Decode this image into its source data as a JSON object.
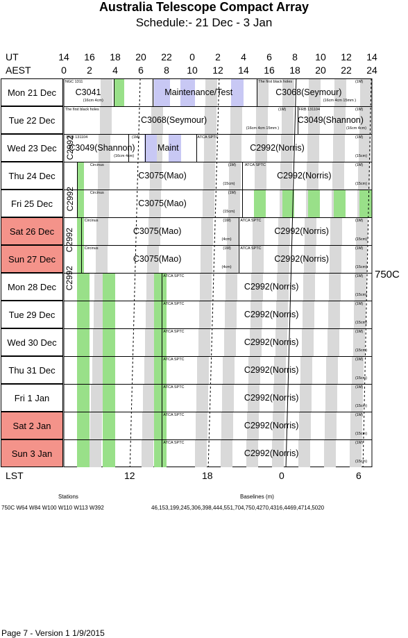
{
  "title": "Australia Telescope Compact Array",
  "subtitle": "Schedule:- 21 Dec - 3  Jan",
  "ut_label": "UT",
  "aest_label": "AEST",
  "ut_ticks": [
    "14",
    "16",
    "18",
    "20",
    "22",
    "0",
    "2",
    "4",
    "6",
    "8",
    "10",
    "12",
    "14"
  ],
  "aest_ticks": [
    "0",
    "2",
    "4",
    "6",
    "8",
    "10",
    "12",
    "14",
    "16",
    "18",
    "20",
    "22",
    "24"
  ],
  "days": [
    {
      "label": "Mon  21 Dec",
      "weekend": false
    },
    {
      "label": "Tue   22 Dec",
      "weekend": false
    },
    {
      "label": "Wed  23 Dec",
      "weekend": false
    },
    {
      "label": "Thu   24 Dec",
      "weekend": false
    },
    {
      "label": "Fri    25 Dec",
      "weekend": false
    },
    {
      "label": "Sat   26 Dec",
      "weekend": true
    },
    {
      "label": "Sun  27 Dec",
      "weekend": true
    },
    {
      "label": "Mon  28 Dec",
      "weekend": false
    },
    {
      "label": "Tue   29 Dec",
      "weekend": false
    },
    {
      "label": "Wed  30 Dec",
      "weekend": false
    },
    {
      "label": "Thu   31 Dec",
      "weekend": false
    },
    {
      "label": "Fri      1  Jan",
      "weekend": false
    },
    {
      "label": "Sat     2  Jan",
      "weekend": true
    },
    {
      "label": "Sun    3  Jan",
      "weekend": true
    }
  ],
  "projects": {
    "c3041": "C3041",
    "ngc1311": "NGC 1311",
    "cfg_16cm4cm": "(16cm 4cm)",
    "maint_test": "Maintenance/Test",
    "fbh": "The first black holes",
    "c3068": "C3068(Seymour)",
    "cfg_16cm4cm15mm": "(16cm 4cm 15mm )",
    "frb": "FRB 131104",
    "c3049": "C3049(Shannon)",
    "cfg_1m": "(1M)",
    "maint": "Maint",
    "atca_sptc": "ATCA SPTC",
    "c2992": "C2992(Norris)",
    "cfg_15cm": "(15cm)",
    "c2992v": "C2992",
    "circinus": "Circinus",
    "c3075": "C3075(Mao)",
    "cfg_4cm": "(4cm)"
  },
  "config_label": "750C",
  "lst_label": "LST",
  "lst_ticks": [
    "12",
    "18",
    "0",
    "6"
  ],
  "stations_label": "Stations",
  "baselines_label": "Baselines (m)",
  "stations_value": "750C   W64 W84 W100 W110 W113 W392",
  "baselines_value": "46,153,199,245,306,398,444,551,704,750,4270,4316,4469,4714,5020",
  "footer": "Page 7 - Version 1  1/9/2015"
}
